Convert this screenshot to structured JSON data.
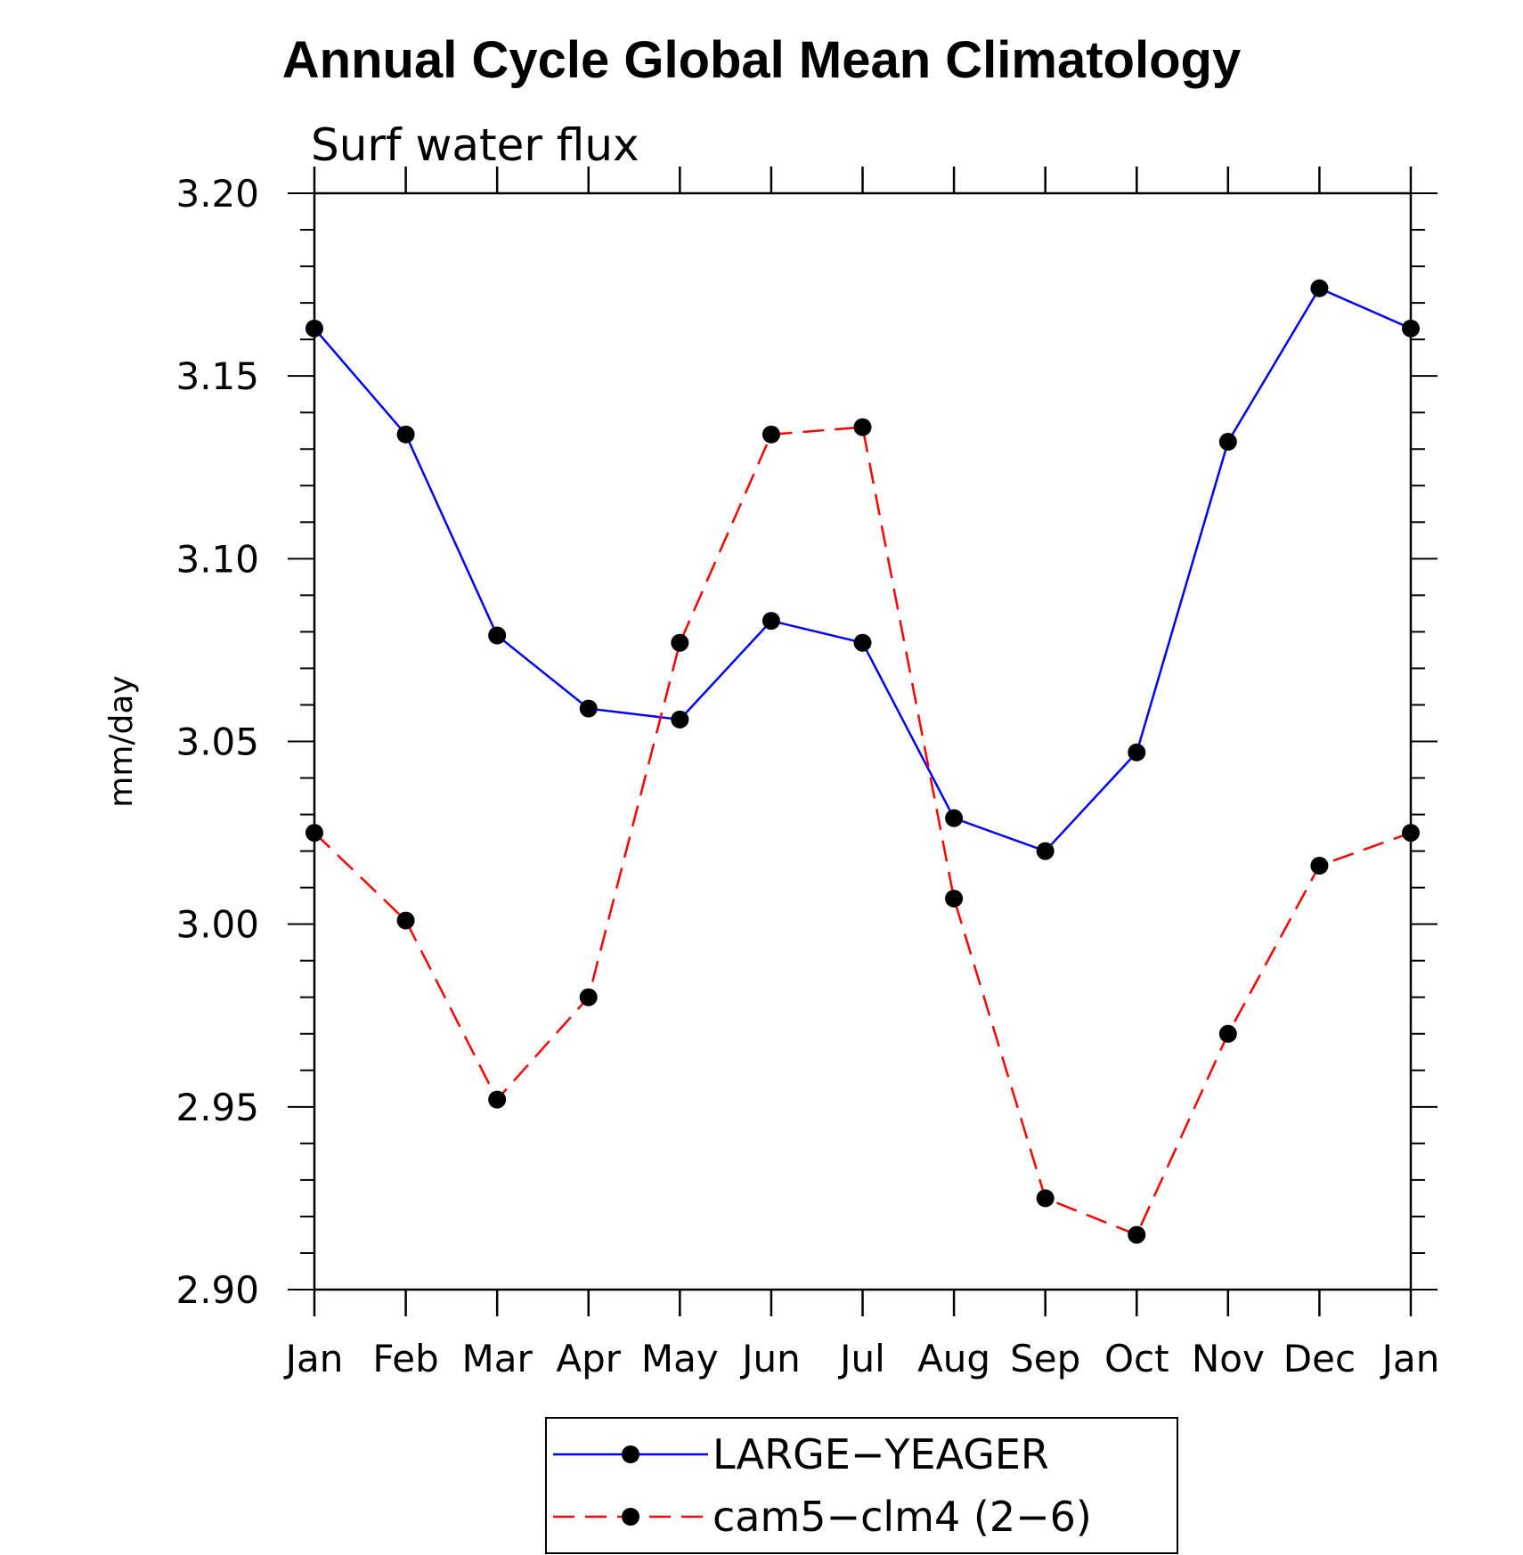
{
  "chart_data": {
    "type": "line",
    "title": "Annual Cycle Global Mean Climatology",
    "subtitle": "Surf water flux",
    "xlabel": "",
    "ylabel": "mm/day",
    "categories": [
      "Jan",
      "Feb",
      "Mar",
      "Apr",
      "May",
      "Jun",
      "Jul",
      "Aug",
      "Sep",
      "Oct",
      "Nov",
      "Dec",
      "Jan"
    ],
    "ylim": [
      2.9,
      3.2
    ],
    "yticks": [
      "3.20",
      "3.15",
      "3.10",
      "3.05",
      "3.00",
      "2.95",
      "2.90"
    ],
    "grid": false,
    "legend_position": "bottom-center",
    "series": [
      {
        "name": "LARGE−YEAGER",
        "color": "#0000ff",
        "line_style": "solid",
        "marker": "filled-circle",
        "values": [
          3.163,
          3.134,
          3.079,
          3.059,
          3.056,
          3.083,
          3.077,
          3.029,
          3.02,
          3.047,
          3.132,
          3.174,
          3.163
        ]
      },
      {
        "name": "cam5−clm4 (2−6)",
        "color": "#ff0000",
        "line_style": "dashed",
        "marker": "filled-circle",
        "values": [
          3.025,
          3.001,
          2.952,
          2.98,
          3.077,
          3.134,
          3.136,
          3.007,
          2.925,
          2.915,
          2.97,
          3.016,
          3.025
        ]
      }
    ]
  }
}
